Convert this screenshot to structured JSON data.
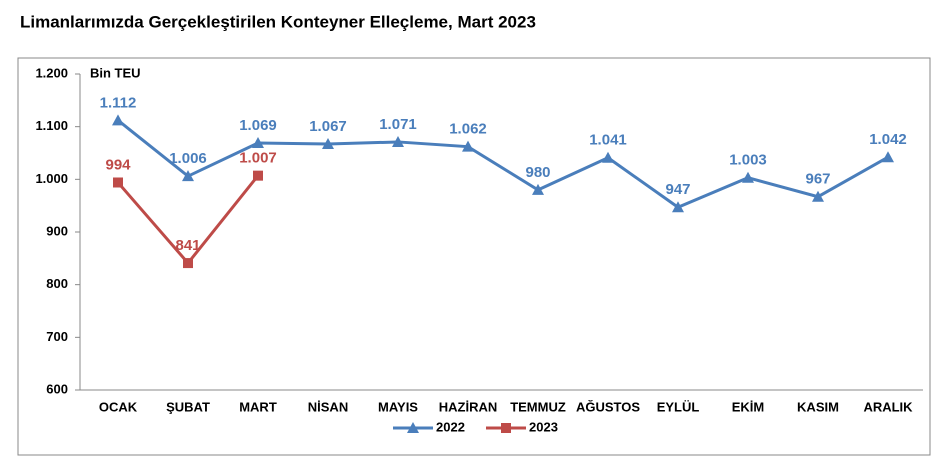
{
  "chart_data": {
    "type": "line",
    "title": "Limanlarımızda Gerçekleştirilen Konteyner Elleçleme, Mart 2023",
    "y_label": "Bin TEU",
    "categories": [
      "OCAK",
      "ŞUBAT",
      "MART",
      "NİSAN",
      "MAYIS",
      "HAZİRAN",
      "TEMMUZ",
      "AĞUSTOS",
      "EYLÜL",
      "EKİM",
      "KASIM",
      "ARALIK"
    ],
    "series": [
      {
        "name": "2022",
        "color": "#4a7ebb",
        "marker": "triangle",
        "values": [
          1112,
          1006,
          1069,
          1067,
          1071,
          1062,
          980,
          1041,
          947,
          1003,
          967,
          1042
        ],
        "value_labels": [
          "1.112",
          "1.006",
          "1.069",
          "1.067",
          "1.071",
          "1.062",
          "980",
          "1.041",
          "947",
          "1.003",
          "967",
          "1.042"
        ]
      },
      {
        "name": "2023",
        "color": "#be4b48",
        "marker": "square",
        "values": [
          994,
          841,
          1007,
          null,
          null,
          null,
          null,
          null,
          null,
          null,
          null,
          null
        ],
        "value_labels": [
          "994",
          "841",
          "1.007",
          null,
          null,
          null,
          null,
          null,
          null,
          null,
          null,
          null
        ]
      }
    ],
    "ylim": [
      600,
      1200
    ],
    "yticks": [
      600,
      700,
      800,
      900,
      {
        "value": 1000,
        "label": "1.000"
      },
      {
        "value": 1100,
        "label": "1.100"
      },
      {
        "value": 1200,
        "label": "1.200"
      }
    ],
    "grid": false,
    "legend": "bottom"
  }
}
